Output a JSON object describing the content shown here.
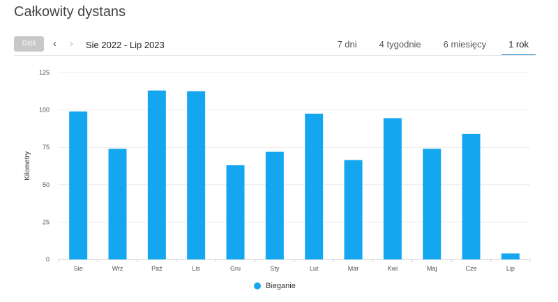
{
  "header": {
    "title": "Całkowity dystans"
  },
  "toolbar": {
    "today_label": "Dziś",
    "prev_icon": "chevron-left-icon",
    "next_icon": "chevron-right-icon",
    "range_label": "Sie 2022 - Lip 2023",
    "tabs": [
      {
        "label": "7 dni",
        "active": false
      },
      {
        "label": "4 tygodnie",
        "active": false
      },
      {
        "label": "6 miesięcy",
        "active": false
      },
      {
        "label": "1 rok",
        "active": true
      }
    ],
    "accent_color": "#1a8fd1"
  },
  "chart_data": {
    "type": "bar",
    "categories": [
      "Sie",
      "Wrz",
      "Paź",
      "Lis",
      "Gru",
      "Sty",
      "Lut",
      "Mar",
      "Kwi",
      "Maj",
      "Cze",
      "Lip"
    ],
    "series": [
      {
        "name": "Bieganie",
        "color": "#14a7ef",
        "values": [
          99,
          74,
          113,
          112.5,
          63,
          72,
          97.5,
          66.5,
          94.5,
          74,
          84,
          4
        ]
      }
    ],
    "ylabel": "Kilometry",
    "xlabel": "",
    "ylim": [
      0,
      125
    ],
    "yticks": [
      0,
      25,
      50,
      75,
      100,
      125
    ],
    "grid": true,
    "legend": "bottom-center"
  }
}
